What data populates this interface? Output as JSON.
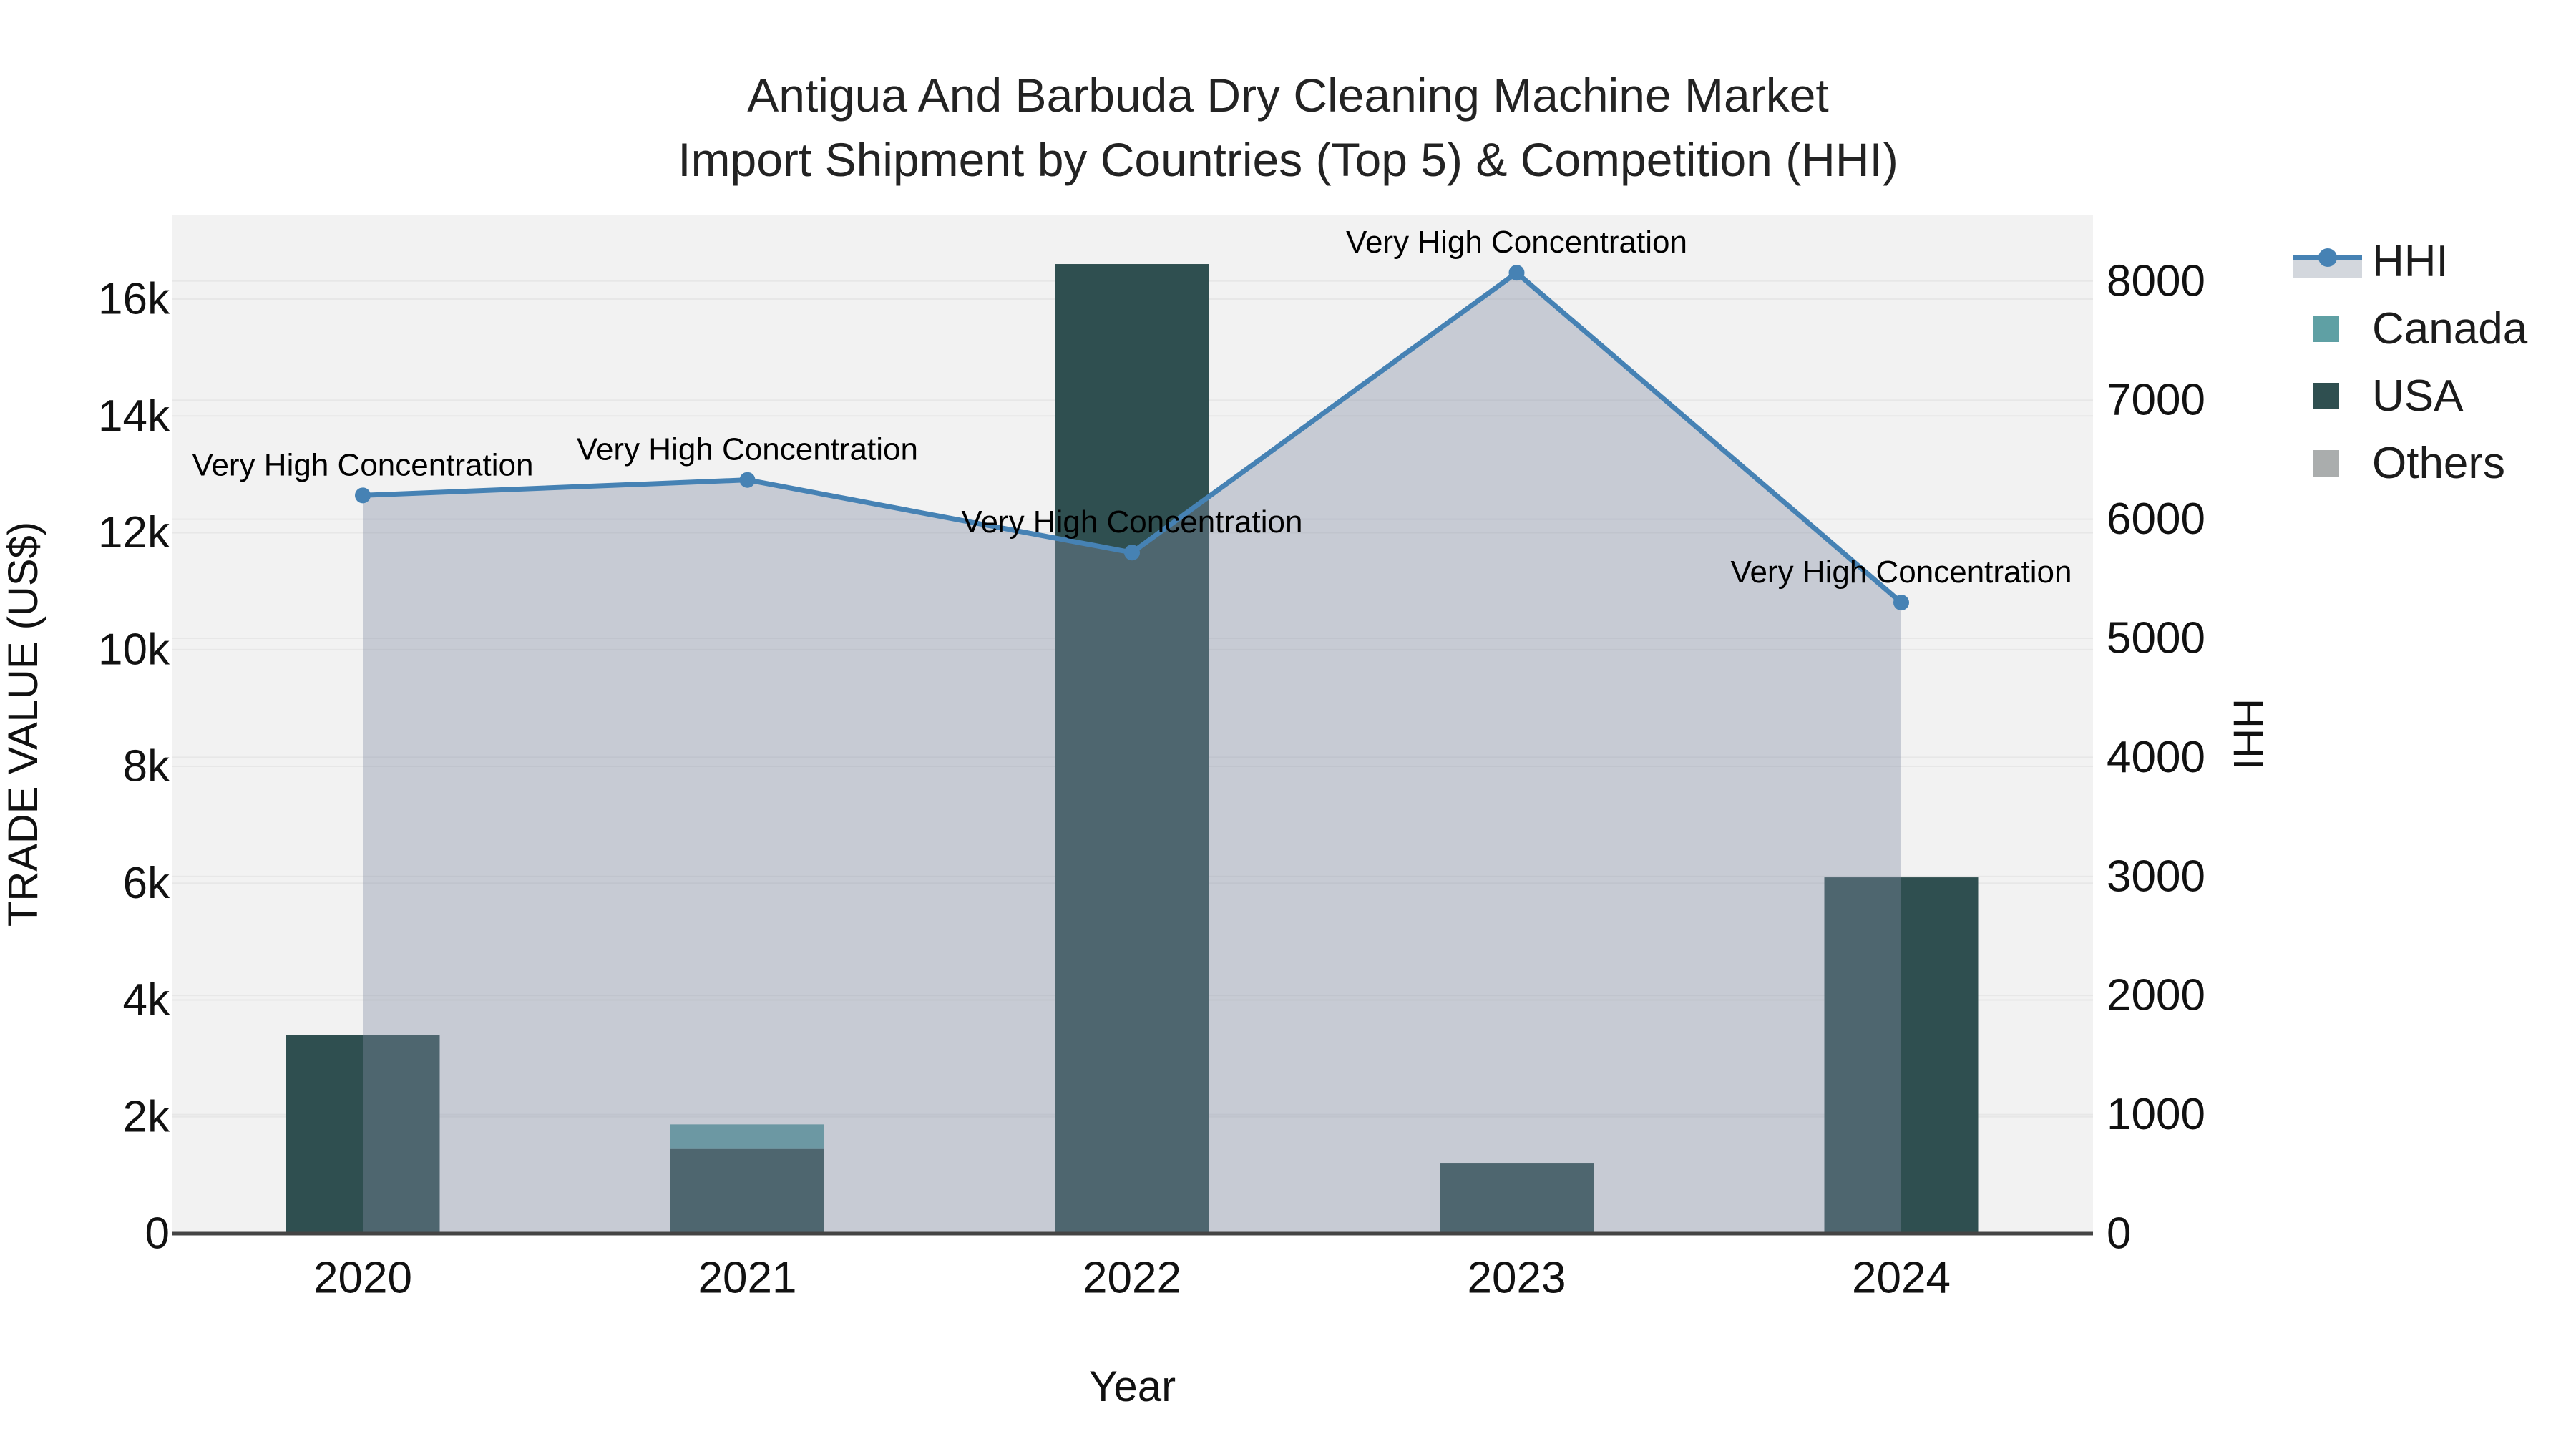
{
  "title": {
    "line1": "Antigua And Barbuda Dry Cleaning Machine Market",
    "line2": "Import Shipment by Countries (Top 5) & Competition (HHI)"
  },
  "axes": {
    "x_title": "Year",
    "y_left_title": "TRADE VALUE (US$)",
    "y_right_title": "HHI",
    "x_tick_labels": [
      "2020",
      "2021",
      "2022",
      "2023",
      "2024"
    ],
    "y_left_ticks": [
      {
        "value": 0,
        "label": "0"
      },
      {
        "value": 2000,
        "label": "2k"
      },
      {
        "value": 4000,
        "label": "4k"
      },
      {
        "value": 6000,
        "label": "6k"
      },
      {
        "value": 8000,
        "label": "8k"
      },
      {
        "value": 10000,
        "label": "10k"
      },
      {
        "value": 12000,
        "label": "12k"
      },
      {
        "value": 14000,
        "label": "14k"
      },
      {
        "value": 16000,
        "label": "16k"
      }
    ],
    "y_right_ticks": [
      {
        "value": 0,
        "label": "0"
      },
      {
        "value": 1000,
        "label": "1000"
      },
      {
        "value": 2000,
        "label": "2000"
      },
      {
        "value": 3000,
        "label": "3000"
      },
      {
        "value": 4000,
        "label": "4000"
      },
      {
        "value": 5000,
        "label": "5000"
      },
      {
        "value": 6000,
        "label": "6000"
      },
      {
        "value": 7000,
        "label": "7000"
      },
      {
        "value": 8000,
        "label": "8000"
      }
    ]
  },
  "legend": {
    "items": [
      {
        "label": "HHI",
        "type": "line",
        "color": "#4682B4",
        "fill": "#D3D7DD"
      },
      {
        "label": "Canada",
        "type": "swatch",
        "color": "#5FA0A4"
      },
      {
        "label": "USA",
        "type": "swatch",
        "color": "#2F4F50"
      },
      {
        "label": "Others",
        "type": "swatch",
        "color": "#AAADAD"
      }
    ]
  },
  "colors": {
    "plot_background": "#F2F2F2",
    "gridline": "#E7E7E7",
    "axis_line": "#444444",
    "hhi_line": "#4682B4",
    "hhi_area_fill": "rgba(128,139,164,0.38)",
    "usa_bar": "#2F4F50",
    "canada_bar": "#5FA0A4",
    "others_bar": "#AAADAD"
  },
  "chart_data": {
    "type": "combo_bar_line",
    "title": "Antigua And Barbuda Dry Cleaning Machine Market Import Shipment by Countries (Top 5) & Competition (HHI)",
    "xlabel": "Year",
    "ylabel_left": "TRADE VALUE (US$)",
    "ylabel_right": "HHI",
    "categories": [
      "2020",
      "2021",
      "2022",
      "2023",
      "2024"
    ],
    "bar_mode": "stack",
    "grid": true,
    "legend_position": "right",
    "ylim_left": [
      0,
      17450
    ],
    "ylim_right": [
      0,
      8560
    ],
    "series": [
      {
        "name": "USA",
        "type": "bar",
        "axis": "left",
        "values": [
          3400,
          1450,
          16600,
          1200,
          6100
        ]
      },
      {
        "name": "Canada",
        "type": "bar",
        "axis": "left",
        "values": [
          0,
          420,
          0,
          0,
          0
        ]
      },
      {
        "name": "Others",
        "type": "bar",
        "axis": "left",
        "values": [
          0,
          0,
          0,
          0,
          0
        ]
      },
      {
        "name": "HHI",
        "type": "line",
        "axis": "right",
        "values": [
          6200,
          6330,
          5720,
          8070,
          5300
        ]
      }
    ],
    "annotations": [
      {
        "x": "2020",
        "y": 6200,
        "text": "Very High Concentration"
      },
      {
        "x": "2021",
        "y": 6330,
        "text": "Very High Concentration"
      },
      {
        "x": "2022",
        "y": 5720,
        "text": "Very High Concentration"
      },
      {
        "x": "2023",
        "y": 8070,
        "text": "Very High Concentration"
      },
      {
        "x": "2024",
        "y": 5300,
        "text": "Very High Concentration"
      }
    ]
  }
}
